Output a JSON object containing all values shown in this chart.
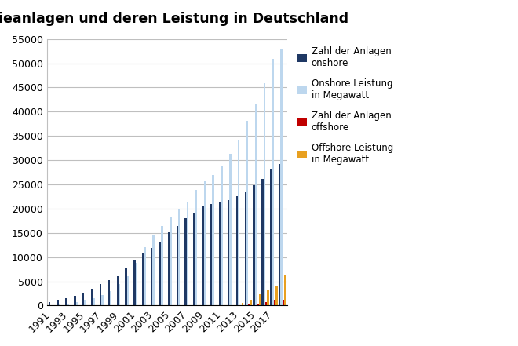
{
  "title": "Windenergieanlagen und deren Leistung in Deutschland",
  "years": [
    1991,
    1992,
    1993,
    1994,
    1995,
    1996,
    1997,
    1998,
    1999,
    2000,
    2001,
    2002,
    2003,
    2004,
    2005,
    2006,
    2007,
    2008,
    2009,
    2010,
    2011,
    2012,
    2013,
    2014,
    2015,
    2016,
    2017,
    2018
  ],
  "zahl_onshore": [
    700,
    1050,
    1600,
    2000,
    2700,
    3500,
    4500,
    5300,
    6100,
    7900,
    9500,
    10700,
    11900,
    13200,
    15200,
    16400,
    18000,
    19000,
    20500,
    21000,
    21400,
    21700,
    22500,
    23300,
    24800,
    26100,
    28000,
    29200
  ],
  "leistung_onshore": [
    100,
    200,
    380,
    650,
    1100,
    1600,
    2100,
    2900,
    4400,
    6100,
    8800,
    12000,
    14600,
    16400,
    18400,
    20000,
    21500,
    23900,
    25700,
    27000,
    28900,
    31300,
    34000,
    38100,
    41700,
    45900,
    50900,
    52800
  ],
  "zahl_offshore": [
    0,
    0,
    0,
    0,
    0,
    0,
    0,
    0,
    0,
    0,
    0,
    0,
    0,
    0,
    0,
    0,
    0,
    0,
    0,
    0,
    0,
    0,
    100,
    150,
    400,
    700,
    1000,
    1100
  ],
  "leistung_offshore": [
    0,
    0,
    0,
    0,
    0,
    0,
    0,
    0,
    0,
    0,
    0,
    0,
    0,
    0,
    0,
    0,
    0,
    0,
    0,
    0,
    0,
    0,
    500,
    1050,
    2300,
    3300,
    4000,
    6400
  ],
  "color_onshore_zahl": "#1F3864",
  "color_onshore_leistung": "#BDD7EE",
  "color_offshore_zahl": "#C00000",
  "color_offshore_leistung": "#E8A020",
  "ylim": [
    0,
    55000
  ],
  "yticks": [
    0,
    5000,
    10000,
    15000,
    20000,
    25000,
    30000,
    35000,
    40000,
    45000,
    50000,
    55000
  ],
  "legend_labels": [
    "Zahl der Anlagen\nonshore",
    "Onshore Leistung\nin Megawatt",
    "Zahl der Anlagen\noffshore",
    "Offshore Leistung\nin Megawatt"
  ],
  "bg_color": "#FFFFFF",
  "plot_bg_color": "#FFFFFF",
  "grid_color": "#BFBFBF"
}
